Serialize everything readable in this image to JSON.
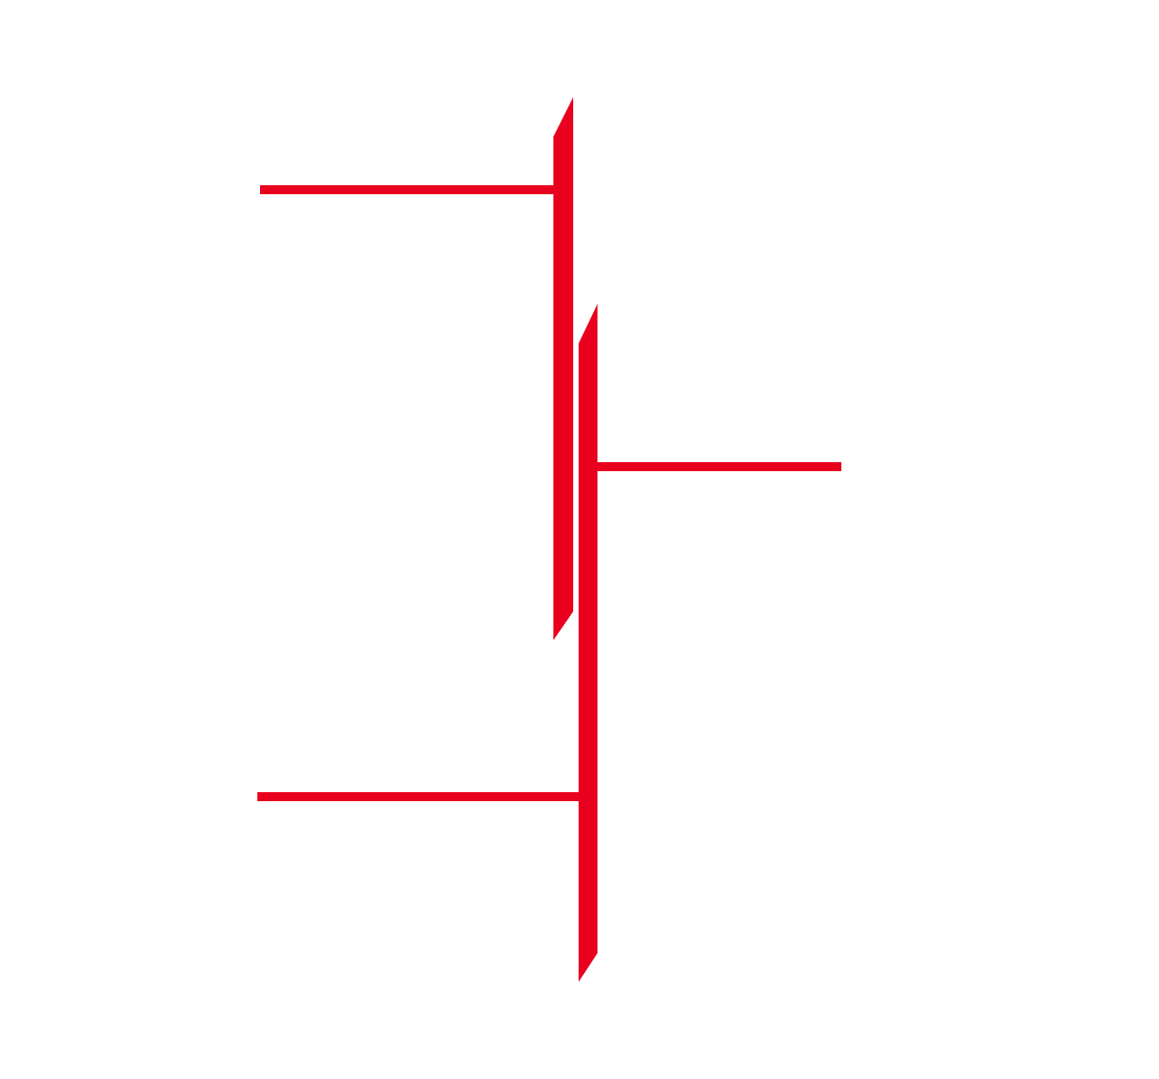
{
  "graphic": {
    "kind": "red line-and-bar logo mark",
    "colors": {
      "background": "#ffffff",
      "accent": "#e8001e"
    },
    "shapes": [
      "upper-left-horizontal-line",
      "left-vertical-bar",
      "right-vertical-bar",
      "middle-right-horizontal-line",
      "lower-left-horizontal-line"
    ]
  }
}
